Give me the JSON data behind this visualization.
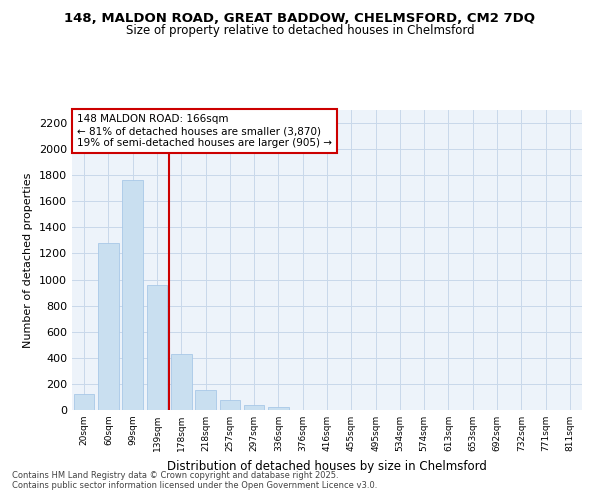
{
  "title": "148, MALDON ROAD, GREAT BADDOW, CHELMSFORD, CM2 7DQ",
  "subtitle": "Size of property relative to detached houses in Chelmsford",
  "xlabel": "Distribution of detached houses by size in Chelmsford",
  "ylabel": "Number of detached properties",
  "categories": [
    "20sqm",
    "60sqm",
    "99sqm",
    "139sqm",
    "178sqm",
    "218sqm",
    "257sqm",
    "297sqm",
    "336sqm",
    "376sqm",
    "416sqm",
    "455sqm",
    "495sqm",
    "534sqm",
    "574sqm",
    "613sqm",
    "653sqm",
    "692sqm",
    "732sqm",
    "771sqm",
    "811sqm"
  ],
  "values": [
    120,
    1280,
    1760,
    960,
    430,
    150,
    75,
    40,
    20,
    0,
    0,
    0,
    0,
    0,
    0,
    0,
    0,
    0,
    0,
    0,
    0
  ],
  "bar_color": "#c9dff0",
  "bar_edge_color": "#a8c8e8",
  "vline_index": 4,
  "vline_color": "#cc0000",
  "annotation_line1": "148 MALDON ROAD: 166sqm",
  "annotation_line2": "← 81% of detached houses are smaller (3,870)",
  "annotation_line3": "19% of semi-detached houses are larger (905) →",
  "annotation_box_color": "#cc0000",
  "ylim_max": 2300,
  "yticks": [
    0,
    200,
    400,
    600,
    800,
    1000,
    1200,
    1400,
    1600,
    1800,
    2000,
    2200
  ],
  "grid_color": "#c8d8ea",
  "bg_color": "#edf3fa",
  "footer1": "Contains HM Land Registry data © Crown copyright and database right 2025.",
  "footer2": "Contains public sector information licensed under the Open Government Licence v3.0."
}
